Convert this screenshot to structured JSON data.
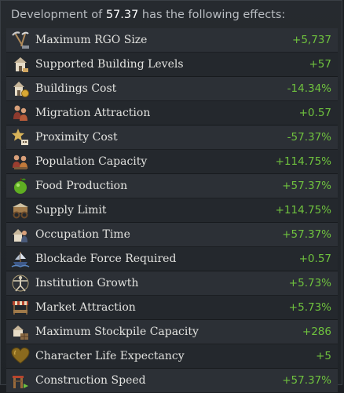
{
  "header": {
    "prefix": "Development of ",
    "value": "57.37",
    "suffix": " has the following effects:"
  },
  "effects": [
    {
      "label": "Maximum RGO Size",
      "value": "+5,737",
      "icon": "pickaxe-icon"
    },
    {
      "label": "Supported Building Levels",
      "value": "+57",
      "icon": "building-icon"
    },
    {
      "label": "Buildings Cost",
      "value": "-14.34%",
      "icon": "building-coins-icon"
    },
    {
      "label": "Migration Attraction",
      "value": "+0.57",
      "icon": "migrants-icon"
    },
    {
      "label": "Proximity Cost",
      "value": "-57.37%",
      "icon": "proximity-star-icon"
    },
    {
      "label": "Population Capacity",
      "value": "+114.75%",
      "icon": "population-icon"
    },
    {
      "label": "Food Production",
      "value": "+57.37%",
      "icon": "apple-icon"
    },
    {
      "label": "Supply Limit",
      "value": "+114.75%",
      "icon": "supply-wagon-icon"
    },
    {
      "label": "Occupation Time",
      "value": "+57.37%",
      "icon": "occupation-icon"
    },
    {
      "label": "Blockade Force Required",
      "value": "+0.57",
      "icon": "blockade-icon"
    },
    {
      "label": "Institution Growth",
      "value": "+5.73%",
      "icon": "vitruvian-icon"
    },
    {
      "label": "Market Attraction",
      "value": "+5.73%",
      "icon": "market-stall-icon"
    },
    {
      "label": "Maximum Stockpile Capacity",
      "value": "+286",
      "icon": "stockpile-icon"
    },
    {
      "label": "Character Life Expectancy",
      "value": "+5",
      "icon": "heart-icon"
    },
    {
      "label": "Construction Speed",
      "value": "+57.37%",
      "icon": "construction-icon"
    }
  ],
  "colors": {
    "positive": "#6fc23e",
    "label": "#e2e2df",
    "header": "#b9bdc2"
  }
}
